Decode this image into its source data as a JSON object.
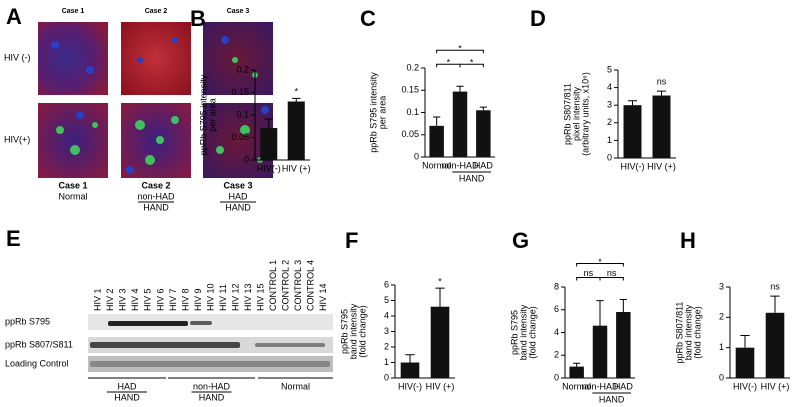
{
  "panel_a": {
    "letter": "A",
    "case_labels": [
      "Case 1",
      "Case 2",
      "Case 3"
    ],
    "row_labels": [
      "HIV (-)",
      "HIV(+)"
    ],
    "footer": [
      [
        "Case 1",
        "Normal"
      ],
      [
        "Case 2",
        "non-HAD",
        "HAND"
      ],
      [
        "Case 3",
        "HAD",
        "HAND"
      ]
    ]
  },
  "panel_e": {
    "letter": "E",
    "lanes": [
      "HIV 1",
      "HIV 2",
      "HIV 3",
      "HIV 4",
      "HIV 5",
      "HIV 6",
      "HIV 7",
      "HIV 8",
      "HIV 9",
      "HIV 10",
      "HIV 11",
      "HIV 12",
      "HIV 13",
      "HIV 15",
      "CONTROL 1",
      "CONTROL 2",
      "CONTROL 3",
      "CONTROL 4",
      "HIV 14"
    ],
    "rows": [
      "ppRb S795",
      "ppRb S807/S811",
      "Loading Control"
    ],
    "groups": [
      [
        "HAD",
        "HAND"
      ],
      [
        "non-HAD",
        "HAND"
      ],
      [
        "Normal"
      ]
    ]
  },
  "chart_data": [
    {
      "type": "bar",
      "panel": "B",
      "ylabel": [
        "ppRb S795 intensity",
        "per area"
      ],
      "categories": [
        "HIV(-)",
        "HIV (+)"
      ],
      "values": [
        0.071,
        0.13
      ],
      "errors": [
        0.02,
        0.007
      ],
      "value_annotations": [
        null,
        "*"
      ],
      "color": "#111111",
      "ylim": [
        0,
        0.2
      ],
      "yticks": [
        0,
        0.05,
        0.1,
        0.15,
        0.2
      ]
    },
    {
      "type": "bar",
      "panel": "C",
      "ylabel": [
        "ppRb S795 intensity",
        "per area"
      ],
      "categories": [
        "Normal",
        "non-HAD",
        "HAD"
      ],
      "group": {
        "label": "HAND",
        "from": 1,
        "to": 2
      },
      "values": [
        0.07,
        0.147,
        0.105
      ],
      "errors": [
        0.02,
        0.012,
        0.007
      ],
      "color": "#111111",
      "brackets": [
        {
          "from": 0,
          "to": 1,
          "label": "*"
        },
        {
          "from": 1,
          "to": 2,
          "label": "*"
        },
        {
          "from": 0,
          "to": 2,
          "label": "*"
        }
      ],
      "ylim": [
        0,
        0.2
      ],
      "yticks": [
        0,
        0.05,
        0.1,
        0.15,
        0.2
      ]
    },
    {
      "type": "bar",
      "panel": "D",
      "ylabel": [
        "ppRb S807/811",
        "pixel intensity",
        "(arbitrary units, x10⁶)"
      ],
      "categories": [
        "HIV(-)",
        "HIV (+)"
      ],
      "values": [
        3.0,
        3.55
      ],
      "errors": [
        0.25,
        0.25
      ],
      "value_annotations": [
        null,
        "ns"
      ],
      "color": "#111111",
      "ylim": [
        0,
        5
      ],
      "yticks": [
        0,
        1,
        2,
        3,
        4,
        5
      ]
    },
    {
      "type": "bar",
      "panel": "F",
      "ylabel": [
        "ppRb S795",
        "band intensity",
        "(fold change)"
      ],
      "categories": [
        "HIV(-)",
        "HIV (+)"
      ],
      "values": [
        1.0,
        4.6
      ],
      "errors": [
        0.5,
        1.2
      ],
      "value_annotations": [
        null,
        "*"
      ],
      "color": "#111111",
      "ylim": [
        0,
        6
      ],
      "yticks": [
        0,
        1,
        2,
        3,
        4,
        5,
        6
      ]
    },
    {
      "type": "bar",
      "panel": "G",
      "ylabel": [
        "ppRb S795",
        "band intensity",
        "(fold change)"
      ],
      "categories": [
        "Normal",
        "non-HAD",
        "HAD"
      ],
      "group": {
        "label": "HAND",
        "from": 1,
        "to": 2
      },
      "values": [
        1.0,
        4.6,
        5.8
      ],
      "errors": [
        0.3,
        2.2,
        1.1
      ],
      "color": "#111111",
      "brackets": [
        {
          "from": 0,
          "to": 1,
          "label": "ns"
        },
        {
          "from": 1,
          "to": 2,
          "label": "ns"
        },
        {
          "from": 0,
          "to": 2,
          "label": "*"
        }
      ],
      "ylim": [
        0,
        8
      ],
      "yticks": [
        0,
        2,
        4,
        6,
        8
      ]
    },
    {
      "type": "bar",
      "panel": "H",
      "ylabel": [
        "ppRb S807/811",
        "band intensity",
        "(fold change)"
      ],
      "categories": [
        "HIV(-)",
        "HIV (+)"
      ],
      "values": [
        1.0,
        2.15
      ],
      "errors": [
        0.4,
        0.55
      ],
      "value_annotations": [
        null,
        "ns"
      ],
      "color": "#111111",
      "ylim": [
        0,
        3
      ],
      "yticks": [
        0,
        1,
        2,
        3
      ]
    }
  ]
}
